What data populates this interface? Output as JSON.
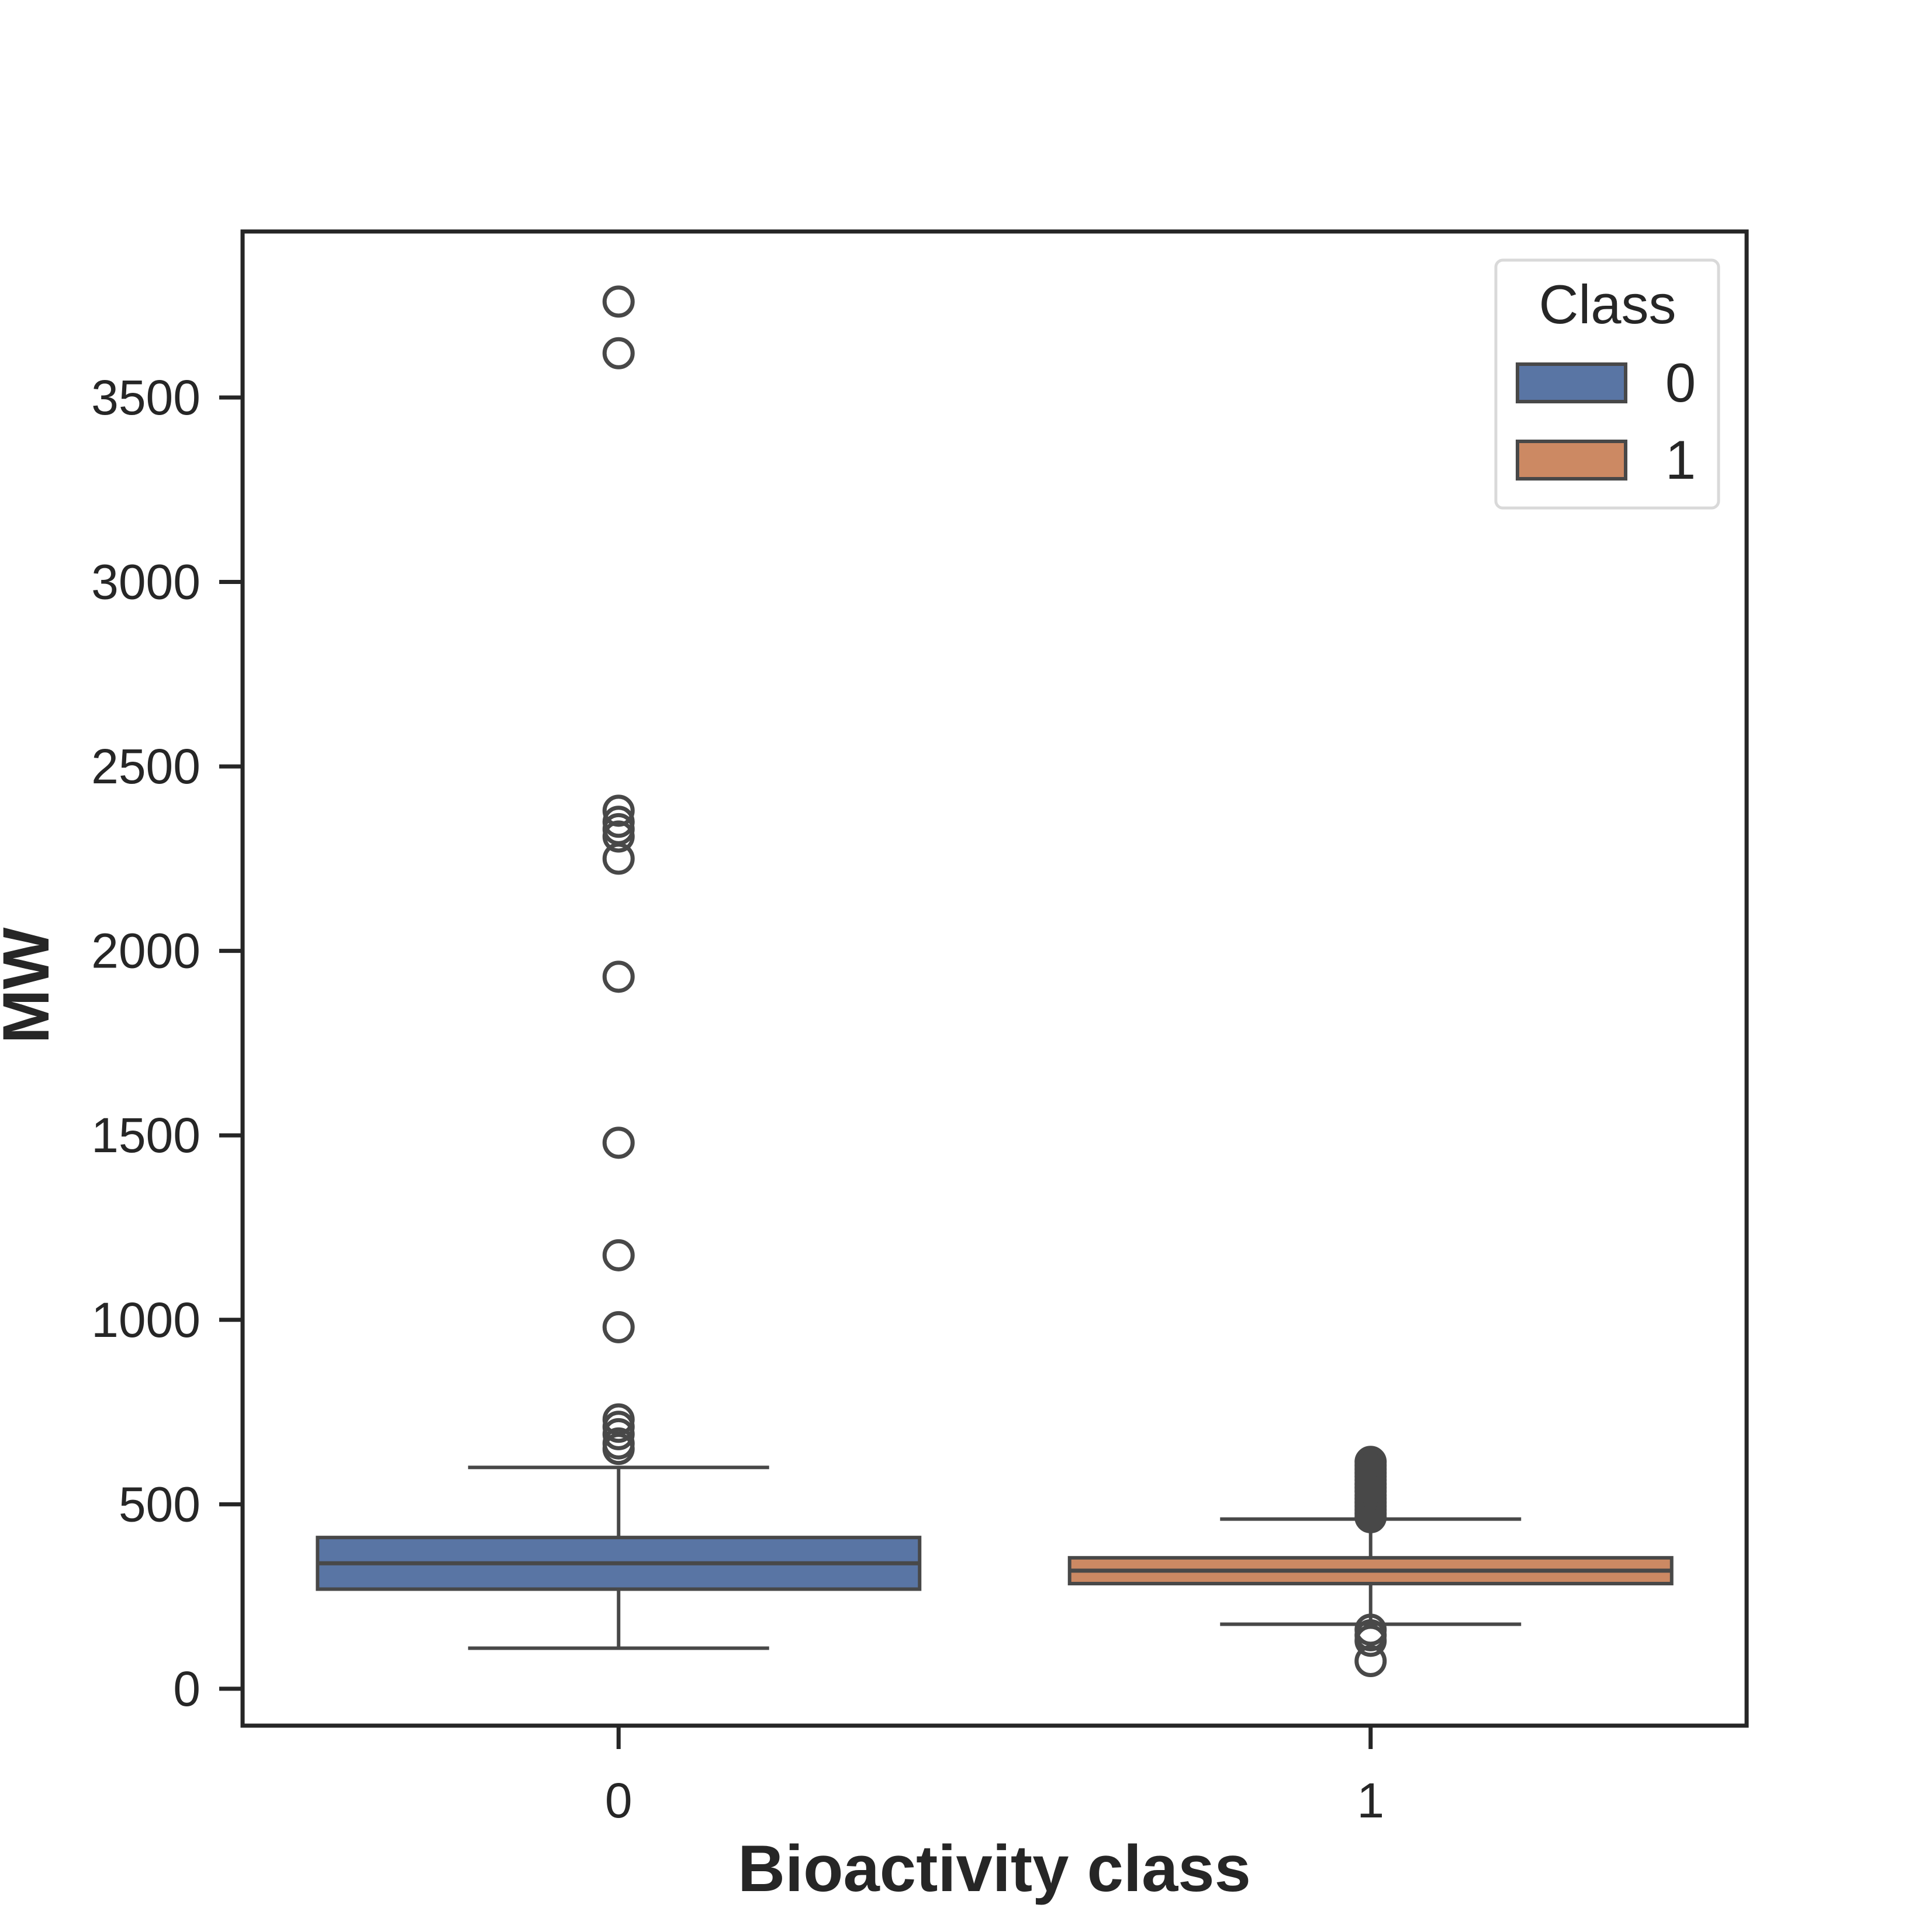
{
  "chart_data": {
    "type": "box",
    "xlabel": "Bioactivity class",
    "ylabel": "MW",
    "categories": [
      "0",
      "1"
    ],
    "ylim": [
      -100,
      3950
    ],
    "yticks": [
      0,
      500,
      1000,
      1500,
      2000,
      2500,
      3000,
      3500
    ],
    "grid": false,
    "legend": {
      "title": "Class",
      "placement": "top-right",
      "entries": [
        {
          "label": "0",
          "color": "#5975a4"
        },
        {
          "label": "1",
          "color": "#cc8963"
        }
      ]
    },
    "series": [
      {
        "name": "0",
        "category": "0",
        "color": "#5975a4",
        "whisker_low": 110,
        "q1": 270,
        "median": 340,
        "q3": 410,
        "whisker_high": 600,
        "outliers": [
          3760,
          3620,
          2380,
          2350,
          2330,
          2310,
          2250,
          1930,
          1480,
          1175,
          980,
          730,
          710,
          690,
          665,
          650
        ]
      },
      {
        "name": "1",
        "category": "1",
        "color": "#cc8963",
        "whisker_low": 175,
        "q1": 285,
        "median": 320,
        "q3": 355,
        "whisker_high": 460,
        "outliers": [
          615,
          605,
          595,
          585,
          575,
          565,
          555,
          545,
          535,
          525,
          515,
          505,
          495,
          485,
          475,
          465,
          160,
          145,
          130,
          75
        ]
      }
    ]
  }
}
